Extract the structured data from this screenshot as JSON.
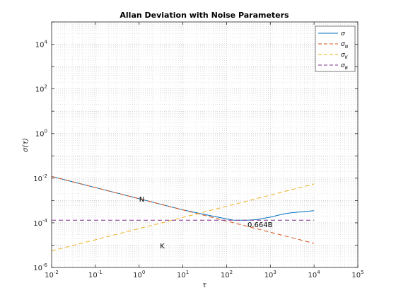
{
  "chart_data": {
    "type": "line",
    "title": "Allan Deviation with Noise Parameters",
    "xlabel": "τ",
    "ylabel": "σ(τ)",
    "xscale": "log",
    "yscale": "log",
    "xlim": [
      0.01,
      100000
    ],
    "ylim": [
      1e-06,
      100000
    ],
    "grid": true,
    "minor_grid": true,
    "legend_position": "top-right",
    "x_ticks": [
      {
        "base": "10",
        "exp": "-2"
      },
      {
        "base": "10",
        "exp": "-1"
      },
      {
        "base": "10",
        "exp": "0"
      },
      {
        "base": "10",
        "exp": "1"
      },
      {
        "base": "10",
        "exp": "2"
      },
      {
        "base": "10",
        "exp": "3"
      },
      {
        "base": "10",
        "exp": "4"
      },
      {
        "base": "10",
        "exp": "5"
      }
    ],
    "y_ticks": [
      {
        "base": "10",
        "exp": "-6"
      },
      {
        "base": "10",
        "exp": "-4"
      },
      {
        "base": "10",
        "exp": "-2"
      },
      {
        "base": "10",
        "exp": "0"
      },
      {
        "base": "10",
        "exp": "2"
      },
      {
        "base": "10",
        "exp": "4"
      }
    ],
    "series": [
      {
        "name": "σ",
        "legend_main": "σ",
        "legend_sub": "",
        "color": "#0072BD",
        "style": "solid",
        "x": [
          0.01,
          0.03,
          0.1,
          0.3,
          1,
          3,
          10,
          30,
          100,
          150,
          200,
          300,
          500,
          1000,
          2000,
          3000,
          10000
        ],
        "y": [
          0.012,
          0.0069,
          0.0038,
          0.0022,
          0.0012,
          0.00069,
          0.00038,
          0.00024,
          0.00015,
          0.00013,
          0.00013,
          0.00013,
          0.00014,
          0.00018,
          0.00025,
          0.00028,
          0.00035
        ]
      },
      {
        "name": "σ_N",
        "legend_main": "σ",
        "legend_sub": "N",
        "color": "#D95319",
        "style": "dashed",
        "x": [
          0.01,
          10000
        ],
        "y": [
          0.012,
          1.2e-05
        ]
      },
      {
        "name": "σ_K",
        "legend_main": "σ",
        "legend_sub": "K",
        "color": "#EDB120",
        "style": "dashed",
        "x": [
          0.01,
          10000
        ],
        "y": [
          5.5e-06,
          0.0055
        ]
      },
      {
        "name": "σ_B",
        "legend_main": "σ",
        "legend_sub": "B",
        "color": "#7E2F8E",
        "style": "dashed",
        "x": [
          0.01,
          10000
        ],
        "y": [
          0.00013,
          0.00013
        ]
      }
    ],
    "annotations": [
      {
        "text": "N",
        "x": 1,
        "y": 0.0012
      },
      {
        "text": "K",
        "x": 3,
        "y": 9.5e-06
      },
      {
        "text": "0.664B",
        "x": 300,
        "y": 8.63e-05
      }
    ]
  }
}
